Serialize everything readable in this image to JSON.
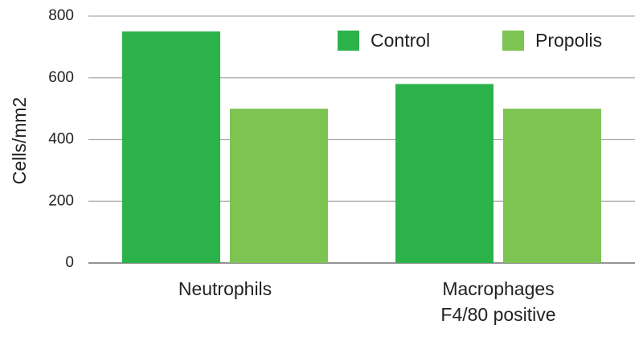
{
  "chart_data": {
    "type": "bar",
    "y_label": "Cells/mm2",
    "categories": [
      "Neutrophils",
      "Macrophages\nF4/80 positive"
    ],
    "series": [
      {
        "name": "Control",
        "color": "#2cb24b",
        "values": [
          750,
          580
        ]
      },
      {
        "name": "Propolis",
        "color": "#7dc453",
        "values": [
          500,
          500
        ]
      }
    ],
    "ylim": [
      0,
      800
    ],
    "yticks": [
      0,
      200,
      400,
      600,
      800
    ],
    "grid": true,
    "legend": "top-right"
  }
}
